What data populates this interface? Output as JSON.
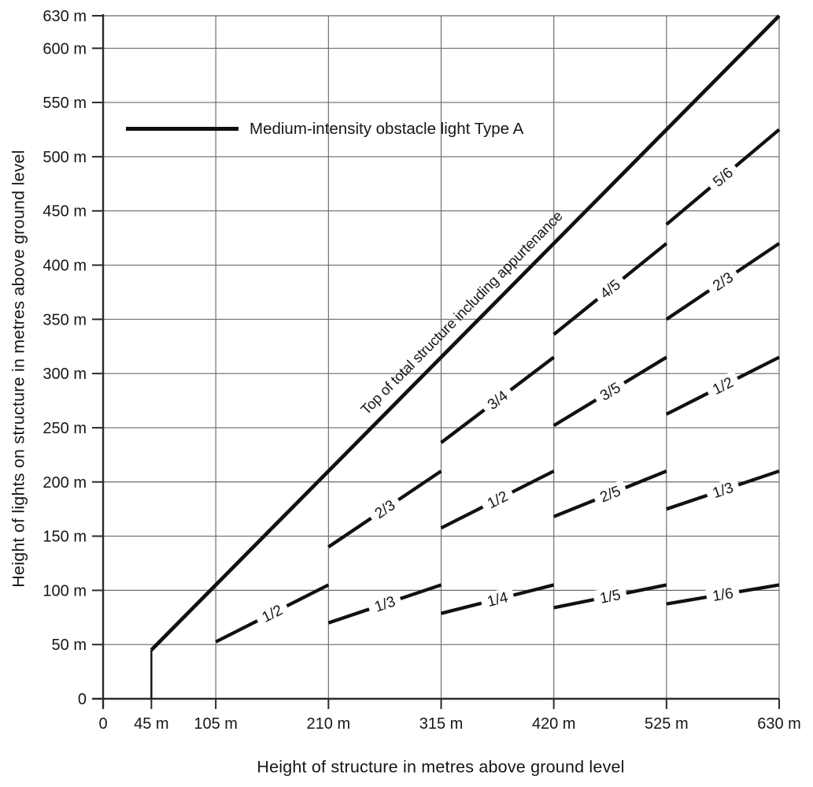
{
  "chart_data": {
    "type": "line",
    "title": "",
    "xlabel": "Height of structure in metres above ground level",
    "ylabel": "Height of lights on structure in metres above ground level",
    "xlim": [
      0,
      630
    ],
    "ylim": [
      0,
      630
    ],
    "grid": true,
    "legend": {
      "label": "Medium-intensity obstacle light Type A",
      "position": "upper-left"
    },
    "x_ticks": [
      {
        "value": 0,
        "label": "0"
      },
      {
        "value": 45,
        "label": "45 m"
      },
      {
        "value": 105,
        "label": "105 m"
      },
      {
        "value": 210,
        "label": "210 m"
      },
      {
        "value": 315,
        "label": "315 m"
      },
      {
        "value": 420,
        "label": "420 m"
      },
      {
        "value": 525,
        "label": "525 m"
      },
      {
        "value": 630,
        "label": "630 m"
      }
    ],
    "y_ticks": [
      {
        "value": 0,
        "label": "0"
      },
      {
        "value": 50,
        "label": "50 m"
      },
      {
        "value": 100,
        "label": "100 m"
      },
      {
        "value": 150,
        "label": "150 m"
      },
      {
        "value": 200,
        "label": "200 m"
      },
      {
        "value": 250,
        "label": "250 m"
      },
      {
        "value": 300,
        "label": "300 m"
      },
      {
        "value": 350,
        "label": "350 m"
      },
      {
        "value": 400,
        "label": "400 m"
      },
      {
        "value": 450,
        "label": "450 m"
      },
      {
        "value": 500,
        "label": "500 m"
      },
      {
        "value": 550,
        "label": "550 m"
      },
      {
        "value": 600,
        "label": "600 m"
      },
      {
        "value": 630,
        "label": "630 m"
      }
    ],
    "x_gridlines": [
      105,
      210,
      315,
      420,
      525,
      630
    ],
    "y_gridlines": [
      50,
      100,
      150,
      200,
      250,
      300,
      350,
      400,
      450,
      500,
      550,
      600,
      630
    ],
    "series": [
      {
        "name": "top-of-structure",
        "label": "Top of total structure including appurtenance",
        "label_style": "along-above",
        "label_t": 0.513,
        "label_offset": 15,
        "points": [
          [
            45,
            0
          ],
          [
            45,
            45
          ],
          [
            630,
            630
          ]
        ]
      },
      {
        "name": "tier-105-210-1-2",
        "label": "1/2",
        "label_style": "inline",
        "points": [
          [
            105,
            52.5
          ],
          [
            210,
            105
          ]
        ]
      },
      {
        "name": "tier-210-315-1-3",
        "label": "1/3",
        "label_style": "inline",
        "points": [
          [
            210,
            70
          ],
          [
            315,
            105
          ]
        ]
      },
      {
        "name": "tier-210-315-2-3",
        "label": "2/3",
        "label_style": "inline",
        "points": [
          [
            210,
            140
          ],
          [
            315,
            210
          ]
        ]
      },
      {
        "name": "tier-315-420-1-4",
        "label": "1/4",
        "label_style": "inline",
        "points": [
          [
            315,
            78.75
          ],
          [
            420,
            105
          ]
        ]
      },
      {
        "name": "tier-315-420-1-2",
        "label": "1/2",
        "label_style": "inline",
        "points": [
          [
            315,
            157.5
          ],
          [
            420,
            210
          ]
        ]
      },
      {
        "name": "tier-315-420-3-4",
        "label": "3/4",
        "label_style": "inline",
        "points": [
          [
            315,
            236.25
          ],
          [
            420,
            315
          ]
        ]
      },
      {
        "name": "tier-420-525-1-5",
        "label": "1/5",
        "label_style": "inline",
        "points": [
          [
            420,
            84
          ],
          [
            525,
            105
          ]
        ]
      },
      {
        "name": "tier-420-525-2-5",
        "label": "2/5",
        "label_style": "inline",
        "points": [
          [
            420,
            168
          ],
          [
            525,
            210
          ]
        ]
      },
      {
        "name": "tier-420-525-3-5",
        "label": "3/5",
        "label_style": "inline",
        "points": [
          [
            420,
            252
          ],
          [
            525,
            315
          ]
        ]
      },
      {
        "name": "tier-420-525-4-5",
        "label": "4/5",
        "label_style": "inline",
        "points": [
          [
            420,
            336
          ],
          [
            525,
            420
          ]
        ]
      },
      {
        "name": "tier-525-630-1-6",
        "label": "1/6",
        "label_style": "inline",
        "points": [
          [
            525,
            87.5
          ],
          [
            630,
            105
          ]
        ]
      },
      {
        "name": "tier-525-630-1-3",
        "label": "1/3",
        "label_style": "inline",
        "points": [
          [
            525,
            175
          ],
          [
            630,
            210
          ]
        ]
      },
      {
        "name": "tier-525-630-1-2",
        "label": "1/2",
        "label_style": "inline",
        "points": [
          [
            525,
            262.5
          ],
          [
            630,
            315
          ]
        ]
      },
      {
        "name": "tier-525-630-2-3",
        "label": "2/3",
        "label_style": "inline",
        "points": [
          [
            525,
            350
          ],
          [
            630,
            420
          ]
        ]
      },
      {
        "name": "tier-525-630-5-6",
        "label": "5/6",
        "label_style": "inline",
        "points": [
          [
            525,
            437.5
          ],
          [
            630,
            525
          ]
        ]
      }
    ],
    "colors": {
      "line": "#111111",
      "grid": "#6a6a6a",
      "axis": "#2a2a2a",
      "text": "#161616",
      "background": "#ffffff"
    }
  }
}
